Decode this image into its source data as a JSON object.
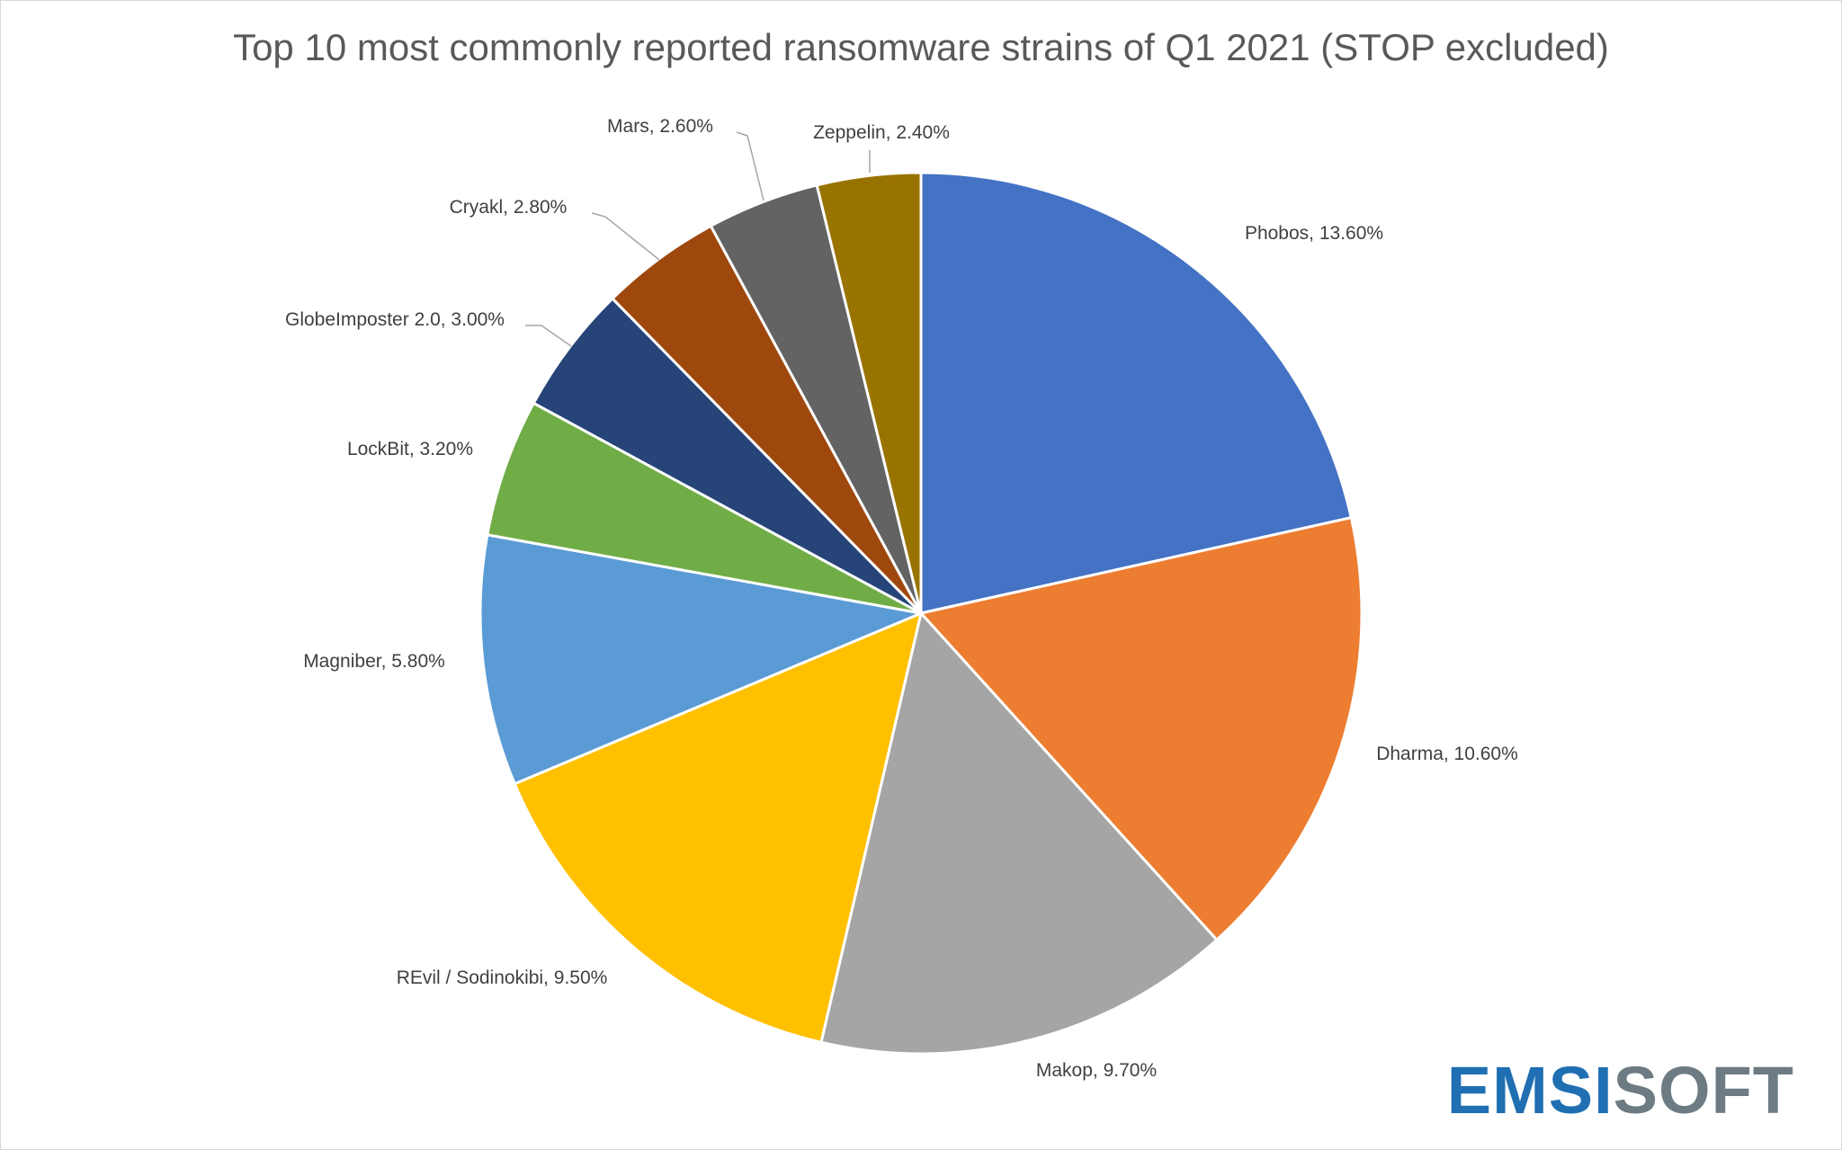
{
  "chart_data": {
    "type": "pie",
    "title": "Top 10 most commonly reported ransomware strains of Q1 2021 (STOP excluded)",
    "slices": [
      {
        "label": "Phobos",
        "value": 13.6,
        "display": "13.60%",
        "color": "#4472C4"
      },
      {
        "label": "Dharma",
        "value": 10.6,
        "display": "10.60%",
        "color": "#ED7D31"
      },
      {
        "label": "Makop",
        "value": 9.7,
        "display": "9.70%",
        "color": "#A5A5A5"
      },
      {
        "label": "REvil / Sodinokibi",
        "value": 9.5,
        "display": "9.50%",
        "color": "#FFC000"
      },
      {
        "label": "Magniber",
        "value": 5.8,
        "display": "5.80%",
        "color": "#5B9BD5"
      },
      {
        "label": "LockBit",
        "value": 3.2,
        "display": "3.20%",
        "color": "#70AD47"
      },
      {
        "label": "GlobeImposter 2.0",
        "value": 3.0,
        "display": "3.00%",
        "color": "#264478"
      },
      {
        "label": "Cryakl",
        "value": 2.8,
        "display": "2.80%",
        "color": "#9E480E"
      },
      {
        "label": "Mars",
        "value": 2.6,
        "display": "2.60%",
        "color": "#636363"
      },
      {
        "label": "Zeppelin",
        "value": 2.4,
        "display": "2.40%",
        "color": "#997300"
      }
    ],
    "legend": "none",
    "data_labels": "outside-end with leader lines"
  },
  "logo": {
    "part1": "EMSI",
    "part2": "SOFT"
  }
}
